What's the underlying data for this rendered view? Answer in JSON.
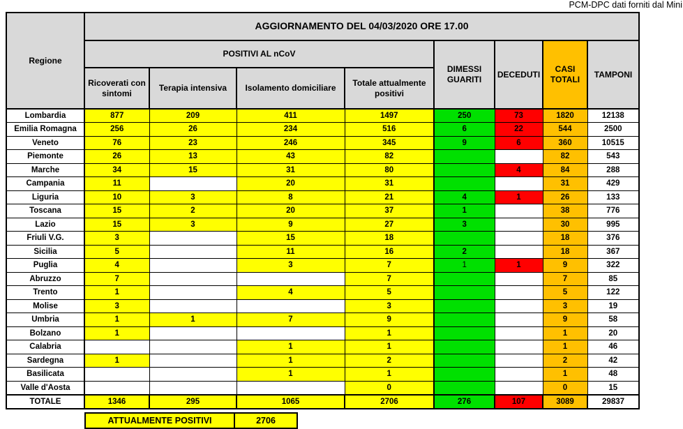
{
  "page": {
    "source_note": "PCM-DPC dati forniti dal Mini"
  },
  "chart_data": {
    "type": "table",
    "title": "AGGIORNAMENTO DEL 04/03/2020 ORE 17.00",
    "group_header": "POSITIVI AL nCoV",
    "columns": [
      "Regione",
      "Ricoverati con sintomi",
      "Terapia intensiva",
      "Isolamento domiciliare",
      "Totale attualmente positivi",
      "DIMESSI GUARITI",
      "DECEDUTI",
      "CASI TOTALI",
      "TAMPONI"
    ],
    "rows": [
      [
        "Lombardia",
        877,
        209,
        411,
        1497,
        250,
        73,
        1820,
        12138
      ],
      [
        "Emilia Romagna",
        256,
        26,
        234,
        516,
        6,
        22,
        544,
        2500
      ],
      [
        "Veneto",
        76,
        23,
        246,
        345,
        9,
        6,
        360,
        10515
      ],
      [
        "Piemonte",
        26,
        13,
        43,
        82,
        null,
        null,
        82,
        543
      ],
      [
        "Marche",
        34,
        15,
        31,
        80,
        null,
        4,
        84,
        288
      ],
      [
        "Campania",
        11,
        null,
        20,
        31,
        null,
        null,
        31,
        429
      ],
      [
        "Liguria",
        10,
        3,
        8,
        21,
        4,
        1,
        26,
        133
      ],
      [
        "Toscana",
        15,
        2,
        20,
        37,
        1,
        null,
        38,
        776
      ],
      [
        "Lazio",
        15,
        3,
        9,
        27,
        3,
        null,
        30,
        995
      ],
      [
        "Friuli V.G.",
        3,
        null,
        15,
        18,
        null,
        null,
        18,
        376
      ],
      [
        "Sicilia",
        5,
        null,
        11,
        16,
        2,
        null,
        18,
        367
      ],
      [
        "Puglia",
        4,
        null,
        3,
        7,
        1,
        1,
        9,
        322
      ],
      [
        "Abruzzo",
        7,
        null,
        null,
        7,
        null,
        null,
        7,
        85
      ],
      [
        "Trento",
        1,
        null,
        4,
        5,
        null,
        null,
        5,
        122
      ],
      [
        "Molise",
        3,
        null,
        null,
        3,
        null,
        null,
        3,
        19
      ],
      [
        "Umbria",
        1,
        1,
        7,
        9,
        null,
        null,
        9,
        58
      ],
      [
        "Bolzano",
        1,
        null,
        null,
        1,
        null,
        null,
        1,
        20
      ],
      [
        "Calabria",
        null,
        null,
        1,
        1,
        null,
        null,
        1,
        46
      ],
      [
        "Sardegna",
        1,
        null,
        1,
        2,
        null,
        null,
        2,
        42
      ],
      [
        "Basilicata",
        null,
        null,
        1,
        1,
        null,
        null,
        1,
        48
      ],
      [
        "Valle d'Aosta",
        null,
        null,
        null,
        0,
        null,
        null,
        0,
        15
      ]
    ],
    "total_row": [
      "TOTALE",
      1346,
      295,
      1065,
      2706,
      276,
      107,
      3089,
      29837
    ],
    "footer": {
      "label": "ATTUALMENTE POSITIVI",
      "value": "2706"
    },
    "style_overrides": [
      {
        "row_index": 11,
        "col_index": 5,
        "font_weight": "normal"
      }
    ],
    "colors": {
      "header_gray": "#d9d9d9",
      "yellow": "#ffff00",
      "green": "#00e000",
      "red": "#ff0000",
      "orange": "#ffc000",
      "border": "#000000"
    },
    "layout": {
      "legend_position": "none",
      "grid": "all-borders"
    }
  }
}
